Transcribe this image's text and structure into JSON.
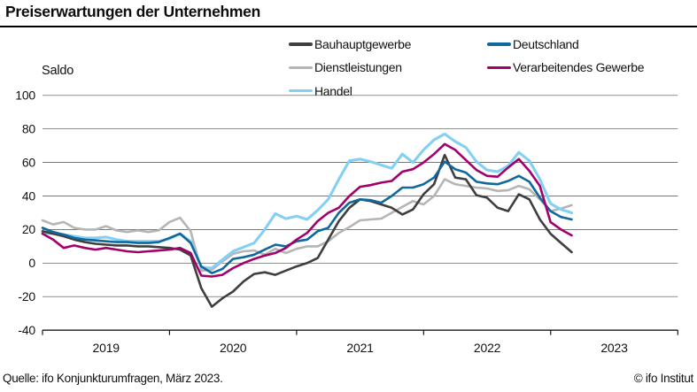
{
  "title": "Preiserwartungen der Unternehmen",
  "y_axis": {
    "label": "Saldo",
    "ticks": [
      100,
      80,
      60,
      40,
      20,
      0,
      -20,
      -40
    ]
  },
  "x_axis": {
    "year_labels": [
      "2019",
      "2020",
      "2021",
      "2022",
      "2023"
    ]
  },
  "source": "Quelle: ifo Konjunkturumfragen, März 2023.",
  "copyright": "© ifo Institut",
  "chart_data": {
    "type": "line",
    "title": "Preiserwartungen der Unternehmen",
    "ylabel": "Saldo",
    "ylim": [
      -40,
      100
    ],
    "grid": "horizontal",
    "legend_position": "top",
    "x_freq": "monthly",
    "months": [
      "2019-01",
      "2019-02",
      "2019-03",
      "2019-04",
      "2019-05",
      "2019-06",
      "2019-07",
      "2019-08",
      "2019-09",
      "2019-10",
      "2019-11",
      "2019-12",
      "2020-01",
      "2020-02",
      "2020-03",
      "2020-04",
      "2020-05",
      "2020-06",
      "2020-07",
      "2020-08",
      "2020-09",
      "2020-10",
      "2020-11",
      "2020-12",
      "2021-01",
      "2021-02",
      "2021-03",
      "2021-04",
      "2021-05",
      "2021-06",
      "2021-07",
      "2021-08",
      "2021-09",
      "2021-10",
      "2021-11",
      "2021-12",
      "2022-01",
      "2022-02",
      "2022-03",
      "2022-04",
      "2022-05",
      "2022-06",
      "2022-07",
      "2022-08",
      "2022-09",
      "2022-10",
      "2022-11",
      "2022-12",
      "2023-01",
      "2023-02",
      "2023-03"
    ],
    "series": [
      {
        "name": "Bauhauptgewerbe",
        "color": "#3f3f3f",
        "values": [
          19,
          17.5,
          16,
          14,
          12.5,
          11.5,
          11,
          10.5,
          10.5,
          10,
          10,
          9.5,
          9,
          8,
          4.5,
          -15,
          -26,
          -21,
          -17,
          -11,
          -6.5,
          -5.5,
          -7,
          -4.5,
          -2,
          0,
          3,
          14,
          25,
          33,
          38,
          37,
          35,
          33,
          29,
          32,
          41,
          47,
          64.5,
          51,
          50,
          40.5,
          39,
          33,
          31,
          41,
          38,
          26,
          17.5,
          12,
          6.5
        ]
      },
      {
        "name": "Deutschland",
        "color": "#10689d",
        "values": [
          21,
          18.5,
          17,
          15,
          14,
          13.5,
          13,
          12.5,
          12.5,
          12,
          12,
          12.5,
          15,
          17.5,
          12,
          -2,
          -6,
          -3.5,
          2.5,
          3.5,
          5,
          8,
          11,
          10,
          13,
          14,
          19,
          21,
          30,
          36,
          38,
          37.5,
          36,
          40,
          45,
          45,
          47,
          51,
          60.5,
          56,
          54,
          48.5,
          47.5,
          47,
          49,
          52,
          48.5,
          39,
          31,
          27.5,
          26
        ]
      },
      {
        "name": "Dienstleistungen",
        "color": "#b5b5b5",
        "values": [
          25.5,
          23,
          24.5,
          21,
          20,
          20,
          22,
          19.5,
          18.5,
          19.5,
          18.5,
          19.5,
          24.5,
          27,
          19,
          -4.5,
          -4,
          1,
          5.5,
          7,
          7.5,
          5,
          8.5,
          6,
          8.5,
          10,
          10,
          13,
          18,
          21.5,
          25.5,
          26,
          26.5,
          30,
          33.5,
          37,
          35,
          40,
          50,
          47,
          46,
          45,
          44.5,
          43,
          43.5,
          46,
          44,
          38,
          31,
          32.5,
          34.5
        ]
      },
      {
        "name": "Verarbeitendes Gewerbe",
        "color": "#a2006b",
        "values": [
          17.5,
          14,
          9,
          10.5,
          9,
          8,
          9,
          8,
          7,
          6.5,
          7,
          7.5,
          8,
          9,
          6,
          -7.5,
          -8,
          -7,
          -3,
          0,
          2.5,
          4.5,
          6,
          9,
          14,
          18,
          25,
          30,
          33,
          40,
          45.5,
          46.5,
          48,
          49,
          54.5,
          56,
          60,
          65,
          71,
          67.5,
          61.5,
          55.5,
          52,
          51.5,
          57,
          62,
          55,
          46,
          24.5,
          20,
          16.5
        ]
      },
      {
        "name": "Handel",
        "color": "#83d0f5",
        "values": [
          18,
          17.5,
          17,
          16,
          15,
          15,
          15.5,
          14,
          13,
          13,
          13,
          13,
          14.5,
          17.5,
          13,
          -2.5,
          -3,
          2,
          7,
          9.5,
          12,
          20,
          29.5,
          26.5,
          28,
          26,
          31.5,
          38,
          50,
          61,
          62,
          60.5,
          58.5,
          56.5,
          65,
          60,
          67.5,
          73.5,
          77,
          72.5,
          69,
          60.5,
          55.5,
          54.5,
          58,
          66,
          61,
          50,
          35.5,
          32,
          30
        ]
      }
    ],
    "legend_order": [
      "Bauhauptgewerbe",
      "Deutschland",
      "Dienstleistungen",
      "Verarbeitendes Gewerbe",
      "Handel"
    ],
    "draw_order": [
      "Dienstleistungen",
      "Handel",
      "Bauhauptgewerbe",
      "Deutschland",
      "Verarbeitendes Gewerbe"
    ]
  }
}
